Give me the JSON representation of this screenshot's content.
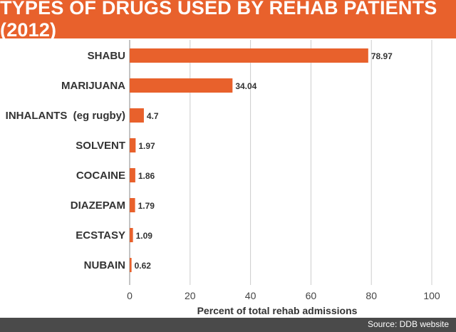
{
  "header": {
    "title": "TYPES OF DRUGS USED BY REHAB PATIENTS (2012)"
  },
  "footer": {
    "source": "Source: DDB website"
  },
  "colors": {
    "accent": "#e8612c",
    "footer_bg": "#4a4a4a",
    "grid": "#cccccc"
  },
  "chart_data": {
    "type": "bar",
    "orientation": "horizontal",
    "title": "TYPES OF DRUGS USED BY REHAB PATIENTS (2012)",
    "categories": [
      "SHABU",
      "MARIJUANA",
      "INHALANTS  (eg rugby)",
      "SOLVENT",
      "COCAINE",
      "DIAZEPAM",
      "ECSTASY",
      "NUBAIN"
    ],
    "values": [
      78.97,
      34.04,
      4.7,
      1.97,
      1.86,
      1.79,
      1.09,
      0.62
    ],
    "value_labels": [
      "78.97",
      "34.04",
      "4.7",
      "1.97",
      "1.86",
      "1.79",
      "1.09",
      "0.62"
    ],
    "xlabel": "Percent of total rehab admissions",
    "ylabel": "",
    "xlim": [
      0,
      100
    ],
    "xticks": [
      "0",
      "20",
      "40",
      "60",
      "80",
      "100"
    ],
    "grid": true,
    "legend": "none",
    "bar_color": "#e8612c"
  }
}
